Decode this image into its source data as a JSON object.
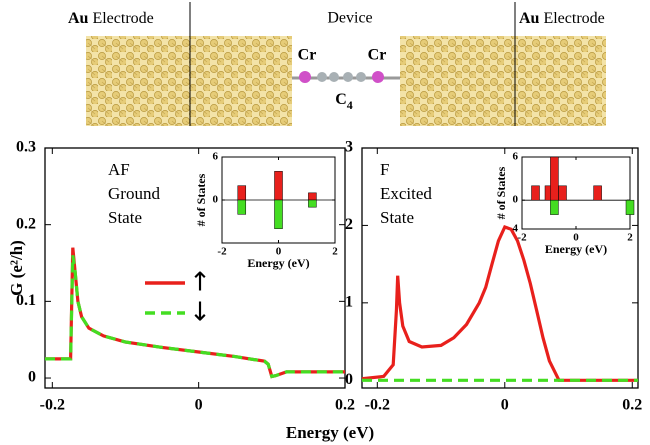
{
  "device": {
    "left_label": {
      "bold": "Au",
      "text": "Electrode"
    },
    "center_label": "Device",
    "right_label": {
      "bold": "Au",
      "text": "Electrode"
    },
    "atom_labels": [
      "Cr",
      "Cr"
    ],
    "chain_label": {
      "base": "C",
      "subscript": "4"
    }
  },
  "figure": {
    "xlabel": "Energy (eV)"
  },
  "chart_data": [
    {
      "type": "line",
      "ylabel": "G (e²/h)",
      "annotation": [
        "AF",
        "Ground",
        "State"
      ],
      "legend": true,
      "xlim": [
        -0.21,
        0.2
      ],
      "xticks": [
        -0.2,
        0,
        0.2
      ],
      "ylim": [
        -0.013,
        0.3
      ],
      "yticks": [
        0,
        0.1,
        0.2,
        0.3
      ],
      "x": [
        -0.21,
        -0.175,
        -0.172,
        -0.169,
        -0.165,
        -0.16,
        -0.15,
        -0.13,
        -0.1,
        -0.05,
        0,
        0.05,
        0.09,
        0.095,
        0.1,
        0.105,
        0.12,
        0.15,
        0.2
      ],
      "series": [
        {
          "name": "↑",
          "color": "#e8201c",
          "style": "solid",
          "values": [
            0.025,
            0.025,
            0.17,
            0.14,
            0.1,
            0.08,
            0.065,
            0.055,
            0.047,
            0.04,
            0.034,
            0.028,
            0.022,
            0.018,
            0.002,
            0.003,
            0.008,
            0.008,
            0.008
          ]
        },
        {
          "name": "↓",
          "color": "#44dd22",
          "style": "dashed",
          "values": [
            0.025,
            0.025,
            0.16,
            0.14,
            0.1,
            0.08,
            0.065,
            0.055,
            0.047,
            0.04,
            0.034,
            0.028,
            0.022,
            0.018,
            0.002,
            0.003,
            0.008,
            0.008,
            0.008
          ]
        }
      ]
    },
    {
      "type": "bar",
      "xlabel": "Energy (eV)",
      "ylabel": "# of States",
      "xlim": [
        -2,
        2
      ],
      "xticks": [
        -2,
        0,
        2
      ],
      "ylim": [
        -6,
        6
      ],
      "yticks": [
        6,
        0
      ],
      "x": [
        -1.3,
        0,
        1.2
      ],
      "series": [
        {
          "color": "#e8201c",
          "values": [
            2,
            4,
            1
          ]
        },
        {
          "color": "#44dd22",
          "values": [
            -2,
            -4,
            -1
          ]
        }
      ]
    },
    {
      "type": "line",
      "annotation": [
        "F",
        "Excited",
        "State"
      ],
      "xlim": [
        -0.224,
        0.209
      ],
      "xticks": [
        -0.2,
        0,
        0.2
      ],
      "ylim": [
        -0.1,
        3
      ],
      "yticks": [
        0,
        1,
        2,
        3
      ],
      "x": [
        -0.224,
        -0.19,
        -0.175,
        -0.17,
        -0.168,
        -0.165,
        -0.16,
        -0.15,
        -0.13,
        -0.1,
        -0.08,
        -0.06,
        -0.04,
        -0.03,
        -0.02,
        -0.01,
        0,
        0.01,
        0.02,
        0.03,
        0.04,
        0.05,
        0.06,
        0.07,
        0.085,
        0.1,
        0.15,
        0.209
      ],
      "series": [
        {
          "color": "#e8201c",
          "style": "solid",
          "values": [
            0.02,
            0.05,
            0.2,
            0.9,
            1.35,
            1.0,
            0.7,
            0.5,
            0.43,
            0.45,
            0.55,
            0.72,
            1.0,
            1.2,
            1.5,
            1.8,
            1.98,
            1.95,
            1.8,
            1.55,
            1.25,
            0.9,
            0.55,
            0.25,
            0,
            0,
            0,
            0
          ]
        },
        {
          "color": "#44dd22",
          "style": "dashed",
          "values": [
            0,
            0,
            0,
            0,
            0,
            0,
            0,
            0,
            0,
            0,
            0,
            0,
            0,
            0,
            0,
            0,
            0,
            0,
            0,
            0,
            0,
            0,
            0,
            0,
            0,
            0,
            0,
            0
          ]
        }
      ]
    },
    {
      "type": "bar",
      "xlabel": "Energy (eV)",
      "ylabel": "# of States",
      "xlim": [
        -2,
        2
      ],
      "xticks": [
        -2,
        0,
        2
      ],
      "ylim": [
        -4,
        6
      ],
      "yticks": [
        6,
        0,
        {
          "value": -4,
          "label": "4"
        }
      ],
      "x": [
        -1.5,
        -1.0,
        -0.8,
        -0.5,
        0.8,
        2.0
      ],
      "series": [
        {
          "color": "#e8201c",
          "values": [
            2,
            2,
            6,
            2,
            2,
            null
          ]
        },
        {
          "color": "#44dd22",
          "values": [
            null,
            null,
            -2,
            null,
            null,
            -2
          ]
        }
      ]
    }
  ]
}
